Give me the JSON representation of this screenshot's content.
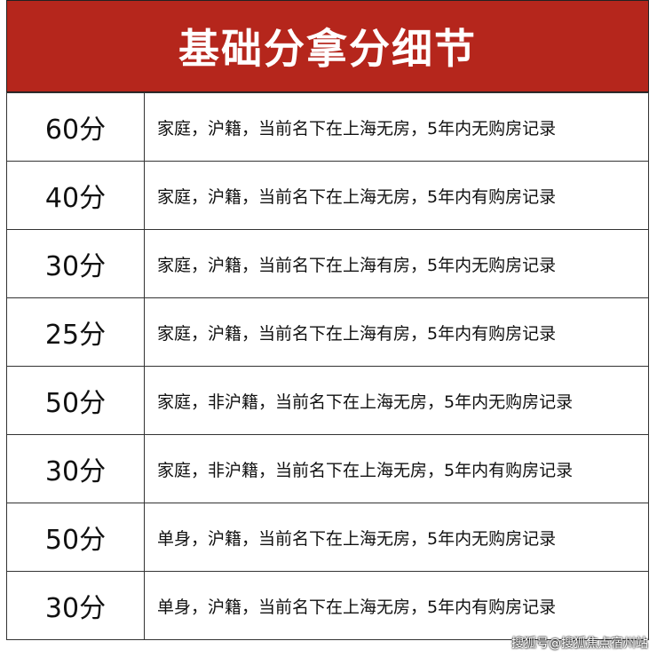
{
  "header": {
    "title": "基础分拿分细节"
  },
  "table": {
    "rows": [
      [
        "60分",
        "家庭，沪籍，当前名下在上海无房，5年内无购房记录"
      ],
      [
        "40分",
        "家庭，沪籍，当前名下在上海无房，5年内有购房记录"
      ],
      [
        "30分",
        "家庭，沪籍，当前名下在上海有房，5年内无购房记录"
      ],
      [
        "25分",
        "家庭，沪籍，当前名下在上海有房，5年内有购房记录"
      ],
      [
        "50分",
        "家庭，非沪籍，当前名下在上海无房，5年内无购房记录"
      ],
      [
        "30分",
        "家庭，非沪籍，当前名下在上海无房，5年内有购房记录"
      ],
      [
        "50分",
        "单身，沪籍，当前名下在上海无房，5年内无购房记录"
      ],
      [
        "30分",
        "单身，沪籍，当前名下在上海无房，5年内有购房记录"
      ]
    ]
  },
  "watermark": "搜狐号@搜狐焦点宿州站"
}
